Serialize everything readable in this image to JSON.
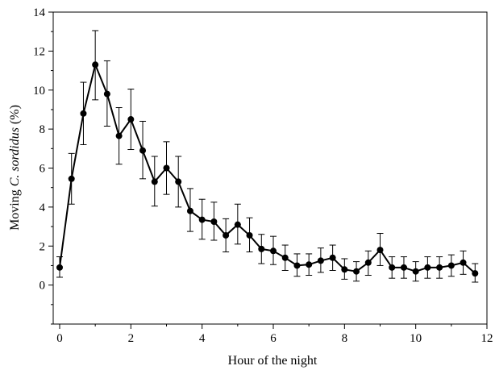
{
  "chart_data": {
    "type": "line",
    "xlabel": "Hour of the night",
    "ylabel_prefix": "Moving ",
    "ylabel_species": "C. sordidus",
    "ylabel_suffix": " (%)",
    "xlim": [
      0,
      12
    ],
    "ylim": [
      -2,
      14
    ],
    "xticks": [
      0,
      2,
      4,
      6,
      8,
      10,
      12
    ],
    "yticks": [
      0,
      2,
      4,
      6,
      8,
      10,
      12,
      14
    ],
    "x_minor_step": 1,
    "y_minor_step": 1,
    "grid": false,
    "series": [
      {
        "color": "#000000",
        "x": [
          0,
          0.333,
          0.667,
          1,
          1.333,
          1.667,
          2,
          2.333,
          2.667,
          3,
          3.333,
          3.667,
          4,
          4.333,
          4.667,
          5,
          5.333,
          5.667,
          6,
          6.333,
          6.667,
          7,
          7.333,
          7.667,
          8,
          8.333,
          8.667,
          9,
          9.333,
          9.667,
          10,
          10.333,
          10.667,
          11,
          11.333,
          11.667
        ],
        "y": [
          0.9,
          5.45,
          8.8,
          11.3,
          9.8,
          7.65,
          8.5,
          6.9,
          5.3,
          6.0,
          5.3,
          3.8,
          3.35,
          3.25,
          2.55,
          3.1,
          2.55,
          1.85,
          1.75,
          1.4,
          1.0,
          1.05,
          1.25,
          1.4,
          0.8,
          0.7,
          1.15,
          1.8,
          0.9,
          0.9,
          0.7,
          0.9,
          0.9,
          1.0,
          1.15,
          0.6
        ],
        "err_upper": [
          1.45,
          6.75,
          10.4,
          13.05,
          11.5,
          9.1,
          10.05,
          8.4,
          6.6,
          7.35,
          6.6,
          4.95,
          4.4,
          4.25,
          3.4,
          4.15,
          3.45,
          2.6,
          2.5,
          2.05,
          1.6,
          1.6,
          1.9,
          2.05,
          1.35,
          1.2,
          1.75,
          2.65,
          1.45,
          1.45,
          1.2,
          1.45,
          1.45,
          1.55,
          1.75,
          1.1
        ],
        "err_lower": [
          0.4,
          4.15,
          7.2,
          9.5,
          8.15,
          6.2,
          6.95,
          5.45,
          4.05,
          4.65,
          4.0,
          2.75,
          2.35,
          2.3,
          1.7,
          2.1,
          1.7,
          1.1,
          1.05,
          0.75,
          0.45,
          0.5,
          0.65,
          0.75,
          0.3,
          0.2,
          0.5,
          1.0,
          0.35,
          0.35,
          0.2,
          0.35,
          0.35,
          0.45,
          0.55,
          0.15
        ]
      }
    ]
  }
}
